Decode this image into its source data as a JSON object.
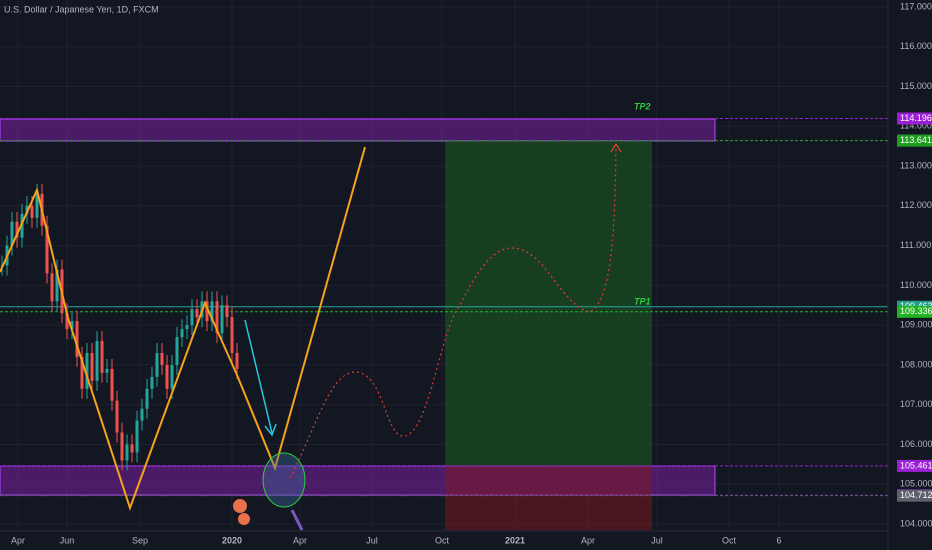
{
  "header": {
    "title": "U.S. Dollar / Japanese Yen, 1D, FXCM"
  },
  "annotations": {
    "tp1": "TP1",
    "tp2": "TP2"
  },
  "price_axis": {
    "ticks": [
      {
        "value": 117,
        "label": "117.000"
      },
      {
        "value": 116,
        "label": "116.000"
      },
      {
        "value": 115,
        "label": "115.000"
      },
      {
        "value": 114,
        "label": "114.000"
      },
      {
        "value": 113,
        "label": "113.000"
      },
      {
        "value": 112,
        "label": "112.000"
      },
      {
        "value": 111,
        "label": "111.000"
      },
      {
        "value": 110,
        "label": "110.000"
      },
      {
        "value": 109,
        "label": "109.000"
      },
      {
        "value": 108,
        "label": "108.000"
      },
      {
        "value": 107,
        "label": "107.000"
      },
      {
        "value": 106,
        "label": "106.000"
      },
      {
        "value": 105,
        "label": "105.000"
      },
      {
        "value": 104,
        "label": "104.000"
      }
    ]
  },
  "price_tags": [
    {
      "value": 114.196,
      "color": "#9b1fd6"
    },
    {
      "value": 113.642,
      "color": "#9b1fd6"
    },
    {
      "value": 113.641,
      "color": "#1e9e1e"
    },
    {
      "value": 109.463,
      "color": "#1f9e8a"
    },
    {
      "value": 109.336,
      "color": "#22b322"
    },
    {
      "value": 105.461,
      "color": "#9b1fd6"
    },
    {
      "value": 104.722,
      "color": "#9b1fd6"
    },
    {
      "value": 104.712,
      "color": "#5d606b"
    }
  ],
  "time_axis": {
    "labels": [
      "Apr",
      "Jun",
      "Sep",
      "2020",
      "Apr",
      "Jul",
      "Oct",
      "2021",
      "Apr",
      "Jul",
      "Oct",
      "6"
    ]
  },
  "candles": {
    "closes": [
      110.5,
      111.0,
      111.6,
      111.2,
      111.8,
      112.0,
      111.7,
      112.3,
      111.5,
      110.3,
      109.6,
      110.4,
      109.3,
      108.9,
      109.1,
      108.2,
      107.4,
      108.3,
      107.6,
      108.6,
      107.8,
      107.9,
      107.1,
      106.3,
      105.6,
      106.0,
      105.8,
      106.6,
      106.9,
      107.4,
      107.7,
      108.3,
      108.0,
      107.4,
      108.0,
      108.7,
      108.9,
      109.0,
      109.4,
      109.2,
      109.6,
      109.1,
      109.6,
      108.8,
      109.5,
      109.2,
      108.3,
      107.9
    ]
  }
}
